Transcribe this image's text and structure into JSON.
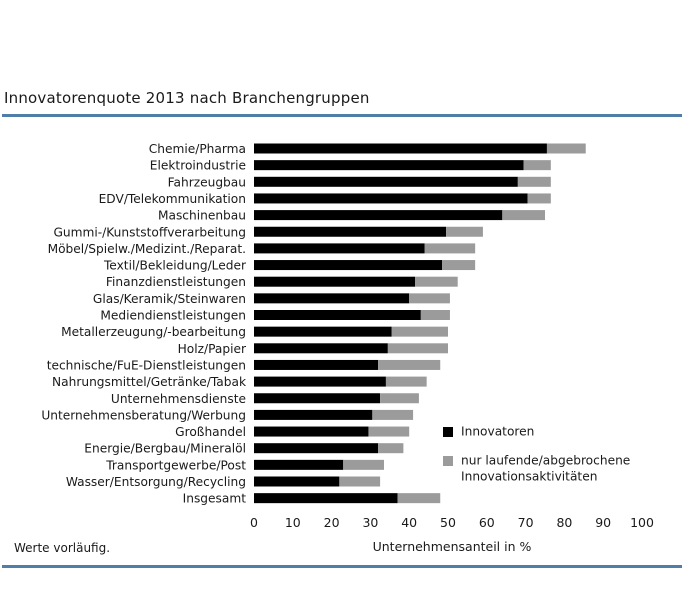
{
  "chart_data": {
    "type": "bar",
    "stacked": true,
    "orientation": "horizontal",
    "title": "Innovatorenquote 2013 nach Branchengruppen",
    "xlabel": "Unternehmensanteil in %",
    "note": "Werte vorläufig.",
    "xlim": [
      0,
      100
    ],
    "xticks": [
      "0",
      "10",
      "20",
      "30",
      "40",
      "50",
      "60",
      "70",
      "80",
      "90",
      "100"
    ],
    "categories": [
      "Chemie/Pharma",
      "Elektroindustrie",
      "Fahrzeugbau",
      "EDV/Telekommunikation",
      "Maschinenbau",
      "Gummi-/Kunststoffverarbeitung",
      "Möbel/Spielw./Medizint./Reparat.",
      "Textil/Bekleidung/Leder",
      "Finanzdienstleistungen",
      "Glas/Keramik/Steinwaren",
      "Mediendienstleistungen",
      "Metallerzeugung/-bearbeitung",
      "Holz/Papier",
      "technische/FuE-Dienstleistungen",
      "Nahrungsmittel/Getränke/Tabak",
      "Unternehmensdienste",
      "Unternehmensberatung/Werbung",
      "Großhandel",
      "Energie/Bergbau/Mineralöl",
      "Transportgewerbe/Post",
      "Wasser/Entsorgung/Recycling",
      "Insgesamt"
    ],
    "series": [
      {
        "name": "Innovatoren",
        "color": "#000000",
        "values": [
          75.5,
          69.5,
          68.0,
          70.5,
          64.0,
          49.5,
          44.0,
          48.5,
          41.5,
          40.0,
          43.0,
          35.5,
          34.5,
          32.0,
          34.0,
          32.5,
          30.5,
          29.5,
          32.0,
          23.0,
          22.0,
          37.0
        ]
      },
      {
        "name": "nur laufende/abgebrochene Innovationsaktivitäten",
        "color": "#9b9b9b",
        "values": [
          10.0,
          7.0,
          8.5,
          6.0,
          11.0,
          9.5,
          13.0,
          8.5,
          11.0,
          10.5,
          7.5,
          14.5,
          15.5,
          16.0,
          10.5,
          10.0,
          10.5,
          10.5,
          6.5,
          10.5,
          10.5,
          11.0
        ]
      }
    ],
    "legend": {
      "position": "right",
      "entries": [
        {
          "lines": [
            "Innovatoren"
          ]
        },
        {
          "lines": [
            "nur laufende/abgebrochene",
            "Innovationsaktivitäten"
          ]
        }
      ]
    },
    "grid": false
  }
}
